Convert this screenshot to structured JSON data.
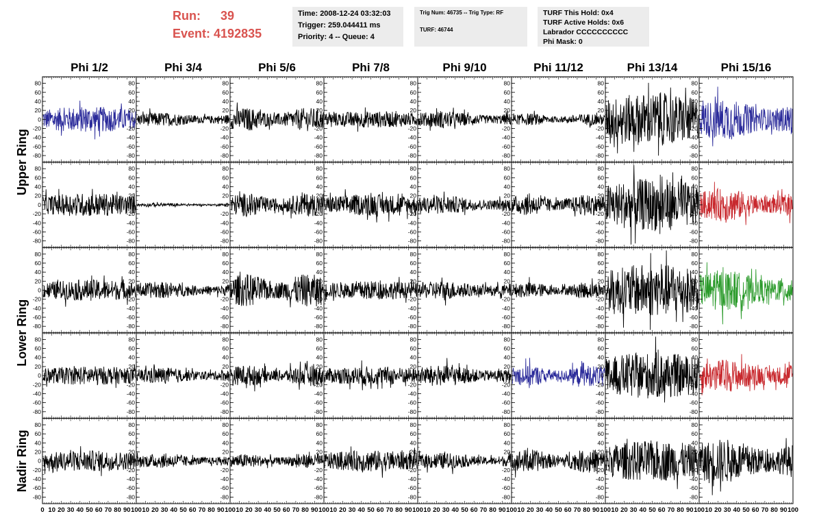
{
  "header": {
    "run_label": "Run:",
    "run_value": "39",
    "event_label": "Event:",
    "event_value": "4192835",
    "time": "Time: 2008-12-24 03:32:03",
    "trigger": "Trigger: 259.044411 ms",
    "priority": "Priority: 4 -- Queue: 4",
    "trig_num": "Trig Num: 46735 -- Trig Type: RF",
    "turf": "TURF: 46744",
    "turf_this_hold": "TURF This Hold: 0x4",
    "turf_active_holds": "TURF Active Holds: 0x6",
    "labrador": "Labrador CCCCCCCCCC",
    "phi_mask": "Phi Mask: 0"
  },
  "colors": {
    "black": "#000000",
    "blue": "#2a2a9a",
    "red": "#c8282d",
    "green": "#2a9a2a",
    "accent": "#d9534f"
  },
  "chart_data": {
    "type": "line",
    "columns": [
      "Phi 1/2",
      "Phi 3/4",
      "Phi 5/6",
      "Phi 7/8",
      "Phi 9/10",
      "Phi 11/12",
      "Phi 13/14",
      "Phi 15/16"
    ],
    "rings": [
      {
        "label": "Upper Ring",
        "rows": [
          0,
          1
        ]
      },
      {
        "label": "Lower Ring",
        "rows": [
          2,
          3
        ]
      },
      {
        "label": "Nadir Ring",
        "rows": [
          4
        ]
      }
    ],
    "ylim": [
      -90,
      90
    ],
    "xlim": [
      0,
      100
    ],
    "yticks": [
      -80,
      -60,
      -40,
      -20,
      0,
      20,
      40,
      60,
      80
    ],
    "xticks": [
      0,
      10,
      20,
      30,
      40,
      50,
      60,
      70,
      80,
      90,
      100
    ],
    "xtick_labels_first": [
      "0",
      "10",
      "20",
      "30",
      "40",
      "50",
      "60",
      "70",
      "80",
      "90",
      "100"
    ],
    "xtick_labels_rest": [
      "10",
      "20",
      "30",
      "40",
      "50",
      "60",
      "70",
      "80",
      "90",
      "100"
    ],
    "samples_per_trace": 260,
    "traces": [
      [
        {
          "amp": 22,
          "color": "blue"
        },
        {
          "amp": 12,
          "color": "black"
        },
        {
          "amp": 20,
          "color": "black"
        },
        {
          "amp": 14,
          "color": "black"
        },
        {
          "amp": 14,
          "color": "black"
        },
        {
          "amp": 10,
          "color": "black"
        },
        {
          "amp": 45,
          "color": "black"
        },
        {
          "amp": 35,
          "color": "blue"
        }
      ],
      [
        {
          "amp": 20,
          "color": "black"
        },
        {
          "amp": 3,
          "color": "black"
        },
        {
          "amp": 20,
          "color": "black"
        },
        {
          "amp": 18,
          "color": "black"
        },
        {
          "amp": 16,
          "color": "black"
        },
        {
          "amp": 18,
          "color": "black"
        },
        {
          "amp": 45,
          "color": "black"
        },
        {
          "amp": 28,
          "color": "red"
        }
      ],
      [
        {
          "amp": 18,
          "color": "black"
        },
        {
          "amp": 14,
          "color": "black"
        },
        {
          "amp": 28,
          "color": "black"
        },
        {
          "amp": 16,
          "color": "black"
        },
        {
          "amp": 16,
          "color": "black"
        },
        {
          "amp": 14,
          "color": "black"
        },
        {
          "amp": 45,
          "color": "black"
        },
        {
          "amp": 35,
          "color": "green"
        }
      ],
      [
        {
          "amp": 16,
          "color": "black"
        },
        {
          "amp": 14,
          "color": "black"
        },
        {
          "amp": 18,
          "color": "black"
        },
        {
          "amp": 16,
          "color": "black"
        },
        {
          "amp": 18,
          "color": "black"
        },
        {
          "amp": 18,
          "color": "blue"
        },
        {
          "amp": 40,
          "color": "black"
        },
        {
          "amp": 28,
          "color": "red"
        }
      ],
      [
        {
          "amp": 18,
          "color": "black"
        },
        {
          "amp": 12,
          "color": "black"
        },
        {
          "amp": 12,
          "color": "black"
        },
        {
          "amp": 18,
          "color": "black"
        },
        {
          "amp": 14,
          "color": "black"
        },
        {
          "amp": 20,
          "color": "black"
        },
        {
          "amp": 35,
          "color": "black"
        },
        {
          "amp": 38,
          "color": "black"
        }
      ]
    ]
  }
}
